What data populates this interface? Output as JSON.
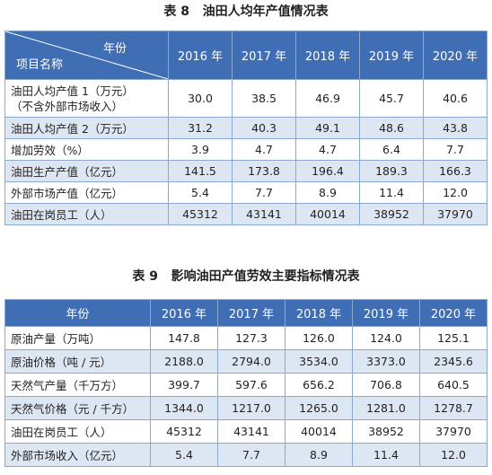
{
  "table8": {
    "caption": "表 8   油田人均年产值情况表",
    "header_year_label": "年份",
    "header_item_label": "项目名称",
    "years": [
      "2016 年",
      "2017 年",
      "2018 年",
      "2019 年",
      "2020 年"
    ],
    "rows": [
      {
        "label": "油田人均产值 1（万元）",
        "label2": "（不含外部市场收入）",
        "values": [
          "30.0",
          "38.5",
          "46.9",
          "45.7",
          "40.6"
        ]
      },
      {
        "label": "油田人均产值 2（万元）",
        "values": [
          "31.2",
          "40.3",
          "49.1",
          "48.6",
          "43.8"
        ]
      },
      {
        "label": "增加劳效（%）",
        "values": [
          "3.9",
          "4.7",
          "4.7",
          "6.4",
          "7.7"
        ]
      },
      {
        "label": "油田生产产值（亿元）",
        "values": [
          "141.5",
          "173.8",
          "196.4",
          "189.3",
          "166.3"
        ]
      },
      {
        "label": "外部市场产值（亿元）",
        "values": [
          "5.4",
          "7.7",
          "8.9",
          "11.4",
          "12.0"
        ]
      },
      {
        "label": "油田在岗员工（人）",
        "values": [
          "45312",
          "43141",
          "40014",
          "38952",
          "37970"
        ]
      }
    ]
  },
  "table9": {
    "caption": "表 9   影响油田产值劳效主要指标情况表",
    "header_label": "年份",
    "years": [
      "2016 年",
      "2017 年",
      "2018 年",
      "2019 年",
      "2020 年"
    ],
    "rows": [
      {
        "label": "原油产量（万吨）",
        "values": [
          "147.8",
          "127.3",
          "126.0",
          "124.0",
          "125.1"
        ]
      },
      {
        "label": "原油价格（吨 / 元）",
        "values": [
          "2188.0",
          "2794.0",
          "3534.0",
          "3373.0",
          "2345.6"
        ]
      },
      {
        "label": "天然气产量（千万方）",
        "values": [
          "399.7",
          "597.6",
          "656.2",
          "706.8",
          "640.5"
        ]
      },
      {
        "label": "天然气价格（元 / 千方）",
        "values": [
          "1344.0",
          "1217.0",
          "1265.0",
          "1281.0",
          "1278.7"
        ]
      },
      {
        "label": "油田在岗员工（人）",
        "values": [
          "45312",
          "43141",
          "40014",
          "38952",
          "37970"
        ]
      },
      {
        "label": "外部市场收入（亿元）",
        "values": [
          "5.4",
          "7.7",
          "8.9",
          "11.4",
          "12.0"
        ]
      }
    ]
  },
  "colors": {
    "header_bg": "#3f6eb4",
    "stripe_bg": "#dde7f4",
    "grid": "#8aa9cf"
  }
}
